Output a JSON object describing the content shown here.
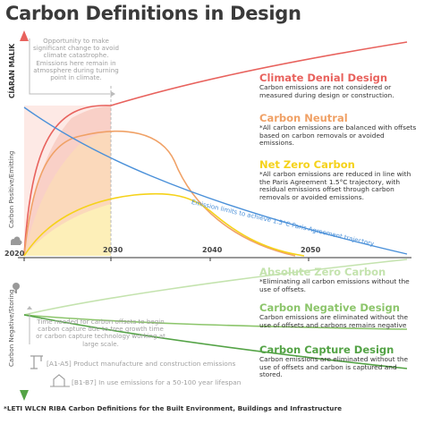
{
  "title": "Carbon Definitions in Design",
  "author": "CÍARAN MALIK",
  "axis": {
    "upper_label": "Carbon Positive/Emitting",
    "lower_label": "Carbon Negative/Storing",
    "years": [
      "2020",
      "2030",
      "2040",
      "2050"
    ]
  },
  "opportunity_note": "Opportunity to make significant change to avoid climate catastrophe. Emissions here remain in atmosphere during turning point in climate.",
  "emission_limits_label": "Emission limits to achieve 1.5°C Paris Agreement trajectory",
  "offset_time_note": "Time needed for carbon offsets to begin carbon capture due to tree growth time or carbon capture technology working at large scale.",
  "legend_a1": "[A1-A5] Product manufacture and construction emissions",
  "legend_b1": "[B1-B7] In use emissions for a 50-100 year lifespan",
  "definitions": [
    {
      "title": "Climate Denial Design",
      "desc": "Carbon emissions are not considered or measured during design or construction.",
      "color": "#e8625d"
    },
    {
      "title": "Carbon Neutral",
      "desc": "*All carbon emissions are balanced with offsets based on carbon removals or avoided emissions.",
      "color": "#f0a166"
    },
    {
      "title": "Net Zero Carbon",
      "desc": "*All carbon emissions are reduced in line with the Paris Agreement 1.5°C trajectory, with residual emissions offset through carbon removals or avoided emissions.",
      "color": "#f5d21a"
    },
    {
      "title": "Absolute Zero Carbon",
      "desc": "*Eliminating all carbon emissions without the use of offsets.",
      "color": "#c4e3ae"
    },
    {
      "title": "Carbon Negative Design",
      "desc": "Carbon emissions are eliminated without the use of offsets and carbons remains negative",
      "color": "#8cc56b"
    },
    {
      "title": "Carbon Capture Design",
      "desc": "Carbon emissions are eliminated without the use of offsets and carbon is captured and stored.",
      "color": "#54a346"
    }
  ],
  "footer": "*LETI WLCN RIBA Carbon Definitions for the Built Environment, Buildings and Infrastructure",
  "colors": {
    "denial": "#e8625d",
    "neutral": "#f0a166",
    "netzero": "#f5d21a",
    "absolute": "#c4e3ae",
    "negative": "#8cc56b",
    "capture": "#54a346",
    "paris": "#4a90d9",
    "axis_up": "#e8625d",
    "axis_down": "#54a346"
  }
}
